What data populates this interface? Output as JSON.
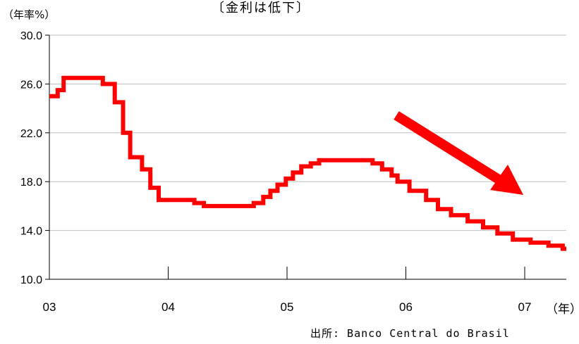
{
  "chart_data": {
    "type": "line",
    "title": "〔金利は低下〕",
    "ylabel": "（年率%）",
    "xlabel": "（年）",
    "ylim": [
      10.0,
      30.0
    ],
    "yticks": [
      "10.0",
      "14.0",
      "18.0",
      "22.0",
      "26.0",
      "30.0"
    ],
    "ytick_values": [
      10,
      14,
      18,
      22,
      26,
      30
    ],
    "xticks": [
      "03",
      "04",
      "05",
      "06",
      "07"
    ],
    "xtick_values": [
      2003,
      2004,
      2005,
      2006,
      2007
    ],
    "xlim": [
      2003,
      2007.35
    ],
    "grid": "horizontal",
    "series": [
      {
        "color": "#ff0000",
        "step": true,
        "points": [
          [
            2003.0,
            25.0
          ],
          [
            2003.07,
            25.5
          ],
          [
            2003.12,
            26.5
          ],
          [
            2003.45,
            26.0
          ],
          [
            2003.55,
            24.5
          ],
          [
            2003.62,
            22.0
          ],
          [
            2003.68,
            20.0
          ],
          [
            2003.78,
            19.0
          ],
          [
            2003.85,
            17.5
          ],
          [
            2003.92,
            16.5
          ],
          [
            2004.22,
            16.25
          ],
          [
            2004.3,
            16.0
          ],
          [
            2004.72,
            16.25
          ],
          [
            2004.8,
            16.75
          ],
          [
            2004.86,
            17.25
          ],
          [
            2004.92,
            17.75
          ],
          [
            2004.99,
            18.25
          ],
          [
            2005.05,
            18.75
          ],
          [
            2005.12,
            19.25
          ],
          [
            2005.2,
            19.5
          ],
          [
            2005.27,
            19.75
          ],
          [
            2005.72,
            19.5
          ],
          [
            2005.8,
            19.0
          ],
          [
            2005.88,
            18.5
          ],
          [
            2005.93,
            18.0
          ],
          [
            2006.03,
            17.25
          ],
          [
            2006.17,
            16.5
          ],
          [
            2006.27,
            15.75
          ],
          [
            2006.38,
            15.25
          ],
          [
            2006.52,
            14.75
          ],
          [
            2006.65,
            14.25
          ],
          [
            2006.77,
            13.75
          ],
          [
            2006.9,
            13.25
          ],
          [
            2007.05,
            13.0
          ],
          [
            2007.2,
            12.75
          ],
          [
            2007.32,
            12.5
          ],
          [
            2007.35,
            12.5
          ]
        ]
      }
    ],
    "annotation": "downward trend arrow"
  },
  "source_text": "出所: Banco Central do Brasil",
  "colors": {
    "series": "#ff0000",
    "grid": "#c0c0c0",
    "axis": "#000000"
  }
}
